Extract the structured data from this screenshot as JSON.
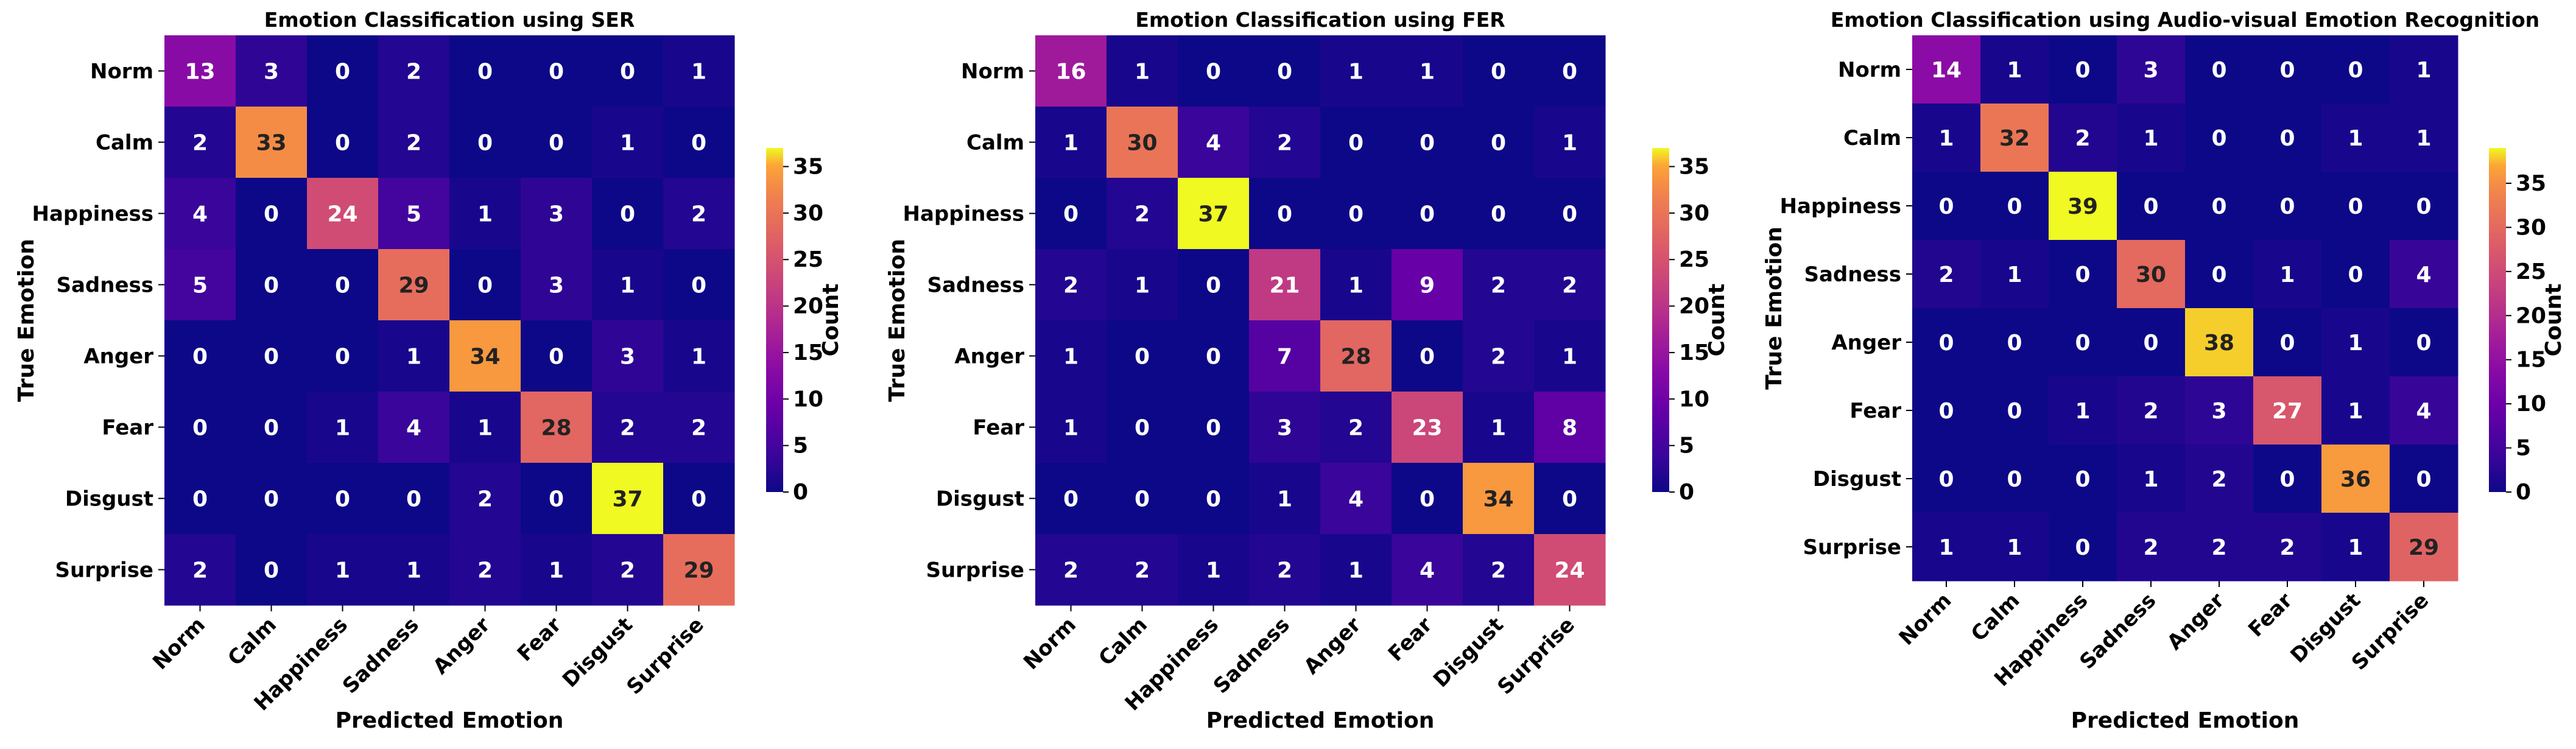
{
  "chart_data": [
    {
      "type": "heatmap",
      "title": "Emotion Classification using SER",
      "xlabel": "Predicted Emotion",
      "ylabel": "True Emotion",
      "categories": [
        "Norm",
        "Calm",
        "Happiness",
        "Sadness",
        "Anger",
        "Fear",
        "Disgust",
        "Surprise"
      ],
      "values": [
        [
          13,
          3,
          0,
          2,
          0,
          0,
          0,
          1
        ],
        [
          2,
          33,
          0,
          2,
          0,
          0,
          1,
          0
        ],
        [
          4,
          0,
          24,
          5,
          1,
          3,
          0,
          2
        ],
        [
          5,
          0,
          0,
          29,
          0,
          3,
          1,
          0
        ],
        [
          0,
          0,
          0,
          1,
          34,
          0,
          3,
          1
        ],
        [
          0,
          0,
          1,
          4,
          1,
          28,
          2,
          2
        ],
        [
          0,
          0,
          0,
          0,
          2,
          0,
          37,
          0
        ],
        [
          2,
          0,
          1,
          1,
          2,
          1,
          2,
          29
        ]
      ],
      "colorbar": {
        "label": "Count",
        "ticks": [
          0,
          5,
          10,
          15,
          20,
          25,
          30,
          35
        ],
        "range": [
          0,
          37
        ]
      },
      "colormap": "plasma"
    },
    {
      "type": "heatmap",
      "title": "Emotion Classification using FER",
      "xlabel": "Predicted Emotion",
      "ylabel": "True Emotion",
      "categories": [
        "Norm",
        "Calm",
        "Happiness",
        "Sadness",
        "Anger",
        "Fear",
        "Disgust",
        "Surprise"
      ],
      "values": [
        [
          16,
          1,
          0,
          0,
          1,
          1,
          0,
          0
        ],
        [
          1,
          30,
          4,
          2,
          0,
          0,
          0,
          1
        ],
        [
          0,
          2,
          37,
          0,
          0,
          0,
          0,
          0
        ],
        [
          2,
          1,
          0,
          21,
          1,
          9,
          2,
          2
        ],
        [
          1,
          0,
          0,
          7,
          28,
          0,
          2,
          1
        ],
        [
          1,
          0,
          0,
          3,
          2,
          23,
          1,
          8
        ],
        [
          0,
          0,
          0,
          1,
          4,
          0,
          34,
          0
        ],
        [
          2,
          2,
          1,
          2,
          1,
          4,
          2,
          24
        ]
      ],
      "colorbar": {
        "label": "Count",
        "ticks": [
          0,
          5,
          10,
          15,
          20,
          25,
          30,
          35
        ],
        "range": [
          0,
          37
        ]
      },
      "colormap": "plasma"
    },
    {
      "type": "heatmap",
      "title": "Emotion Classification using Audio-visual Emotion Recognition",
      "xlabel": "Predicted Emotion",
      "ylabel": "True Emotion",
      "categories": [
        "Norm",
        "Calm",
        "Happiness",
        "Sadness",
        "Anger",
        "Fear",
        "Disgust",
        "Surprise"
      ],
      "values": [
        [
          14,
          1,
          0,
          3,
          0,
          0,
          0,
          1
        ],
        [
          1,
          32,
          2,
          1,
          0,
          0,
          1,
          1
        ],
        [
          0,
          0,
          39,
          0,
          0,
          0,
          0,
          0
        ],
        [
          2,
          1,
          0,
          30,
          0,
          1,
          0,
          4
        ],
        [
          0,
          0,
          0,
          0,
          38,
          0,
          1,
          0
        ],
        [
          0,
          0,
          1,
          2,
          3,
          27,
          1,
          4
        ],
        [
          0,
          0,
          0,
          1,
          2,
          0,
          36,
          0
        ],
        [
          1,
          1,
          0,
          2,
          2,
          2,
          1,
          29
        ]
      ],
      "colorbar": {
        "label": "Count",
        "ticks": [
          0,
          5,
          10,
          15,
          20,
          25,
          30,
          35
        ],
        "range": [
          0,
          39
        ]
      },
      "colormap": "plasma"
    }
  ]
}
